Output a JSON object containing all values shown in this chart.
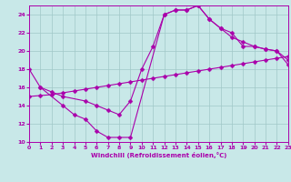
{
  "xlabel": "Windchill (Refroidissement éolien,°C)",
  "xlim": [
    0,
    23
  ],
  "ylim": [
    10,
    25
  ],
  "yticks": [
    10,
    12,
    14,
    16,
    18,
    20,
    22,
    24
  ],
  "xticks": [
    0,
    1,
    2,
    3,
    4,
    5,
    6,
    7,
    8,
    9,
    10,
    11,
    12,
    13,
    14,
    15,
    16,
    17,
    18,
    19,
    20,
    21,
    22,
    23
  ],
  "background_color": "#c8e8e8",
  "line_color": "#aa00aa",
  "line1_x": [
    0,
    1,
    3,
    4,
    5,
    6,
    7,
    8,
    9,
    12,
    13,
    14,
    15,
    16,
    17,
    18,
    19,
    20,
    21,
    22,
    23
  ],
  "line1_y": [
    18,
    16,
    14,
    13,
    12.5,
    11.2,
    10.5,
    10.5,
    10.5,
    24.0,
    24.5,
    24.5,
    25.0,
    23.5,
    22.5,
    21.5,
    21.0,
    20.5,
    20.2,
    20.0,
    19.0
  ],
  "line2_x": [
    1,
    2,
    3,
    5,
    6,
    7,
    8,
    9,
    10,
    11,
    12,
    13,
    14,
    15,
    16,
    17,
    18,
    19,
    20,
    21,
    22,
    23
  ],
  "line2_y": [
    16,
    15.5,
    15.0,
    14.5,
    14.0,
    13.5,
    13.0,
    14.5,
    18.0,
    20.5,
    24.0,
    24.5,
    24.5,
    25.0,
    23.5,
    22.5,
    22.0,
    20.5,
    20.5,
    20.2,
    20.0,
    18.5
  ],
  "line3_x": [
    0,
    1,
    2,
    3,
    4,
    5,
    6,
    7,
    8,
    9,
    10,
    11,
    12,
    13,
    14,
    15,
    16,
    17,
    18,
    19,
    20,
    21,
    22,
    23
  ],
  "line3_y": [
    15.0,
    15.1,
    15.2,
    15.4,
    15.6,
    15.8,
    16.0,
    16.2,
    16.4,
    16.6,
    16.8,
    17.0,
    17.2,
    17.4,
    17.6,
    17.8,
    18.0,
    18.2,
    18.4,
    18.6,
    18.8,
    19.0,
    19.2,
    19.4
  ],
  "grid_color": "#a0c8c8",
  "markersize": 2.5
}
